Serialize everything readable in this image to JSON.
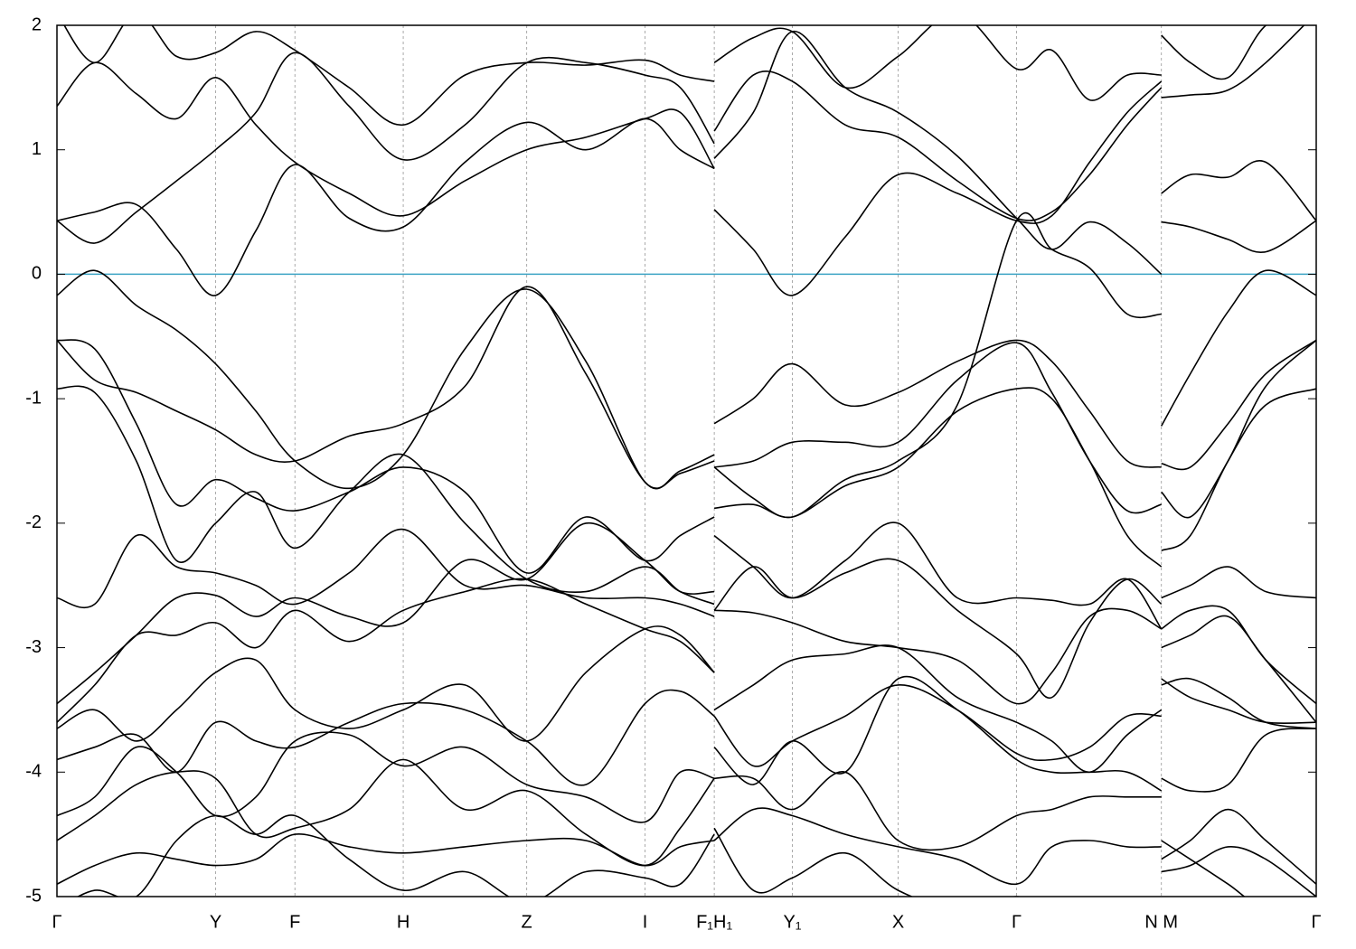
{
  "chart_data": {
    "type": "line",
    "x": [
      0,
      0.03,
      0.063,
      0.095,
      0.126,
      0.158,
      0.189,
      0.232,
      0.275,
      0.324,
      0.373,
      0.42,
      0.467,
      0.495,
      0.522,
      0.522,
      0.522,
      0.553,
      0.584,
      0.626,
      0.668,
      0.715,
      0.762,
      0.79,
      0.82,
      0.85,
      0.877,
      0.877,
      0.877,
      0.9,
      0.93,
      0.96,
      1.0
    ],
    "series": [
      {
        "color": "#000000",
        "values": [
          2.1,
          1.7,
          2.1,
          1.75,
          1.78,
          1.95,
          1.8,
          1.5,
          1.2,
          1.6,
          1.7,
          1.68,
          1.72,
          1.6,
          1.55,
          null,
          1.7,
          1.9,
          1.95,
          1.5,
          1.75,
          2.1,
          1.65,
          1.8,
          1.4,
          1.6,
          1.6,
          null,
          1.92,
          1.7,
          1.58,
          2.0,
          2.2
        ]
      },
      {
        "color": "#000000",
        "values": [
          1.35,
          1.7,
          1.45,
          1.25,
          1.58,
          1.2,
          0.9,
          0.65,
          0.47,
          0.75,
          1.0,
          1.1,
          1.25,
          1.3,
          0.85,
          null,
          1.15,
          1.6,
          1.55,
          1.2,
          1.1,
          0.75,
          0.45,
          0.5,
          0.8,
          1.2,
          1.5,
          null,
          1.42,
          1.44,
          1.48,
          1.7,
          2.1
        ]
      },
      {
        "color": "#000000",
        "values": [
          0.43,
          0.25,
          0.5,
          0.75,
          1.0,
          1.3,
          1.78,
          1.35,
          0.92,
          1.2,
          1.7,
          1.7,
          1.6,
          1.5,
          1.05,
          null,
          0.93,
          1.3,
          1.95,
          1.5,
          1.3,
          0.95,
          0.45,
          0.2,
          0.42,
          0.25,
          0.0,
          null,
          0.42,
          0.38,
          0.28,
          0.18,
          0.43
        ]
      },
      {
        "color": "#000000",
        "values": [
          0.43,
          0.5,
          0.56,
          0.2,
          -0.17,
          0.35,
          0.88,
          0.45,
          0.38,
          0.9,
          1.22,
          1.0,
          1.25,
          1.0,
          0.85,
          null,
          0.52,
          0.2,
          -0.17,
          0.3,
          0.8,
          0.65,
          0.43,
          0.47,
          0.9,
          1.3,
          1.55,
          null,
          0.65,
          0.8,
          0.78,
          0.9,
          0.43
        ]
      },
      {
        "color": "#000000",
        "values": [
          -0.17,
          0.03,
          -0.25,
          -0.45,
          -0.72,
          -1.1,
          -1.5,
          -1.72,
          -1.45,
          -0.6,
          -0.12,
          -0.7,
          -1.67,
          -1.58,
          -1.45,
          null,
          -1.55,
          -1.8,
          -1.95,
          -1.65,
          -1.5,
          -1.05,
          0.43,
          0.2,
          0.05,
          -0.32,
          -0.32,
          null,
          -1.22,
          -0.8,
          -0.3,
          0.03,
          -0.17
        ]
      },
      {
        "color": "#000000",
        "values": [
          -0.53,
          -0.85,
          -0.95,
          -1.1,
          -1.25,
          -1.45,
          -1.5,
          -1.3,
          -1.2,
          -0.9,
          -0.1,
          -0.8,
          -1.67,
          -1.6,
          -1.5,
          null,
          -1.2,
          -1.0,
          -0.72,
          -1.05,
          -0.95,
          -0.7,
          -0.53,
          -0.7,
          -1.1,
          -1.5,
          -1.55,
          null,
          -1.52,
          -1.55,
          -1.2,
          -0.8,
          -0.53
        ]
      },
      {
        "color": "#000000",
        "values": [
          -0.53,
          -0.6,
          -1.2,
          -1.85,
          -1.65,
          -1.8,
          -1.9,
          -1.75,
          -1.55,
          -1.75,
          -2.4,
          -1.95,
          -2.3,
          -2.1,
          -1.95,
          null,
          -1.55,
          -1.5,
          -1.35,
          -1.35,
          -1.35,
          -0.85,
          -0.55,
          -0.95,
          -1.5,
          -1.9,
          -1.85,
          null,
          -1.75,
          -1.95,
          -1.5,
          -0.9,
          -0.53
        ]
      },
      {
        "color": "#000000",
        "values": [
          -0.92,
          -0.95,
          -1.5,
          -2.3,
          -2.0,
          -1.75,
          -2.2,
          -1.75,
          -1.45,
          -2.0,
          -2.45,
          -2.55,
          -2.35,
          -2.55,
          -2.65,
          null,
          -1.88,
          -1.85,
          -1.95,
          -1.7,
          -1.55,
          -1.1,
          -0.92,
          -1.0,
          -1.5,
          -2.1,
          -2.35,
          null,
          -2.22,
          -2.1,
          -1.5,
          -1.05,
          -0.92
        ]
      },
      {
        "color": "#000000",
        "values": [
          -2.6,
          -2.65,
          -2.1,
          -2.35,
          -2.4,
          -2.5,
          -2.65,
          -2.4,
          -2.05,
          -2.5,
          -2.5,
          -2.6,
          -2.6,
          -2.65,
          -2.75,
          null,
          -2.1,
          -2.35,
          -2.6,
          -2.3,
          -2.0,
          -2.6,
          -2.6,
          -2.62,
          -2.65,
          -2.45,
          -2.85,
          null,
          -2.6,
          -2.5,
          -2.35,
          -2.55,
          -2.6
        ]
      },
      {
        "color": "#000000",
        "values": [
          -3.45,
          -3.2,
          -2.9,
          -2.6,
          -2.58,
          -2.75,
          -2.6,
          -2.75,
          -2.8,
          -2.3,
          -2.45,
          -2.0,
          -2.3,
          -2.55,
          -2.55,
          null,
          -2.7,
          -2.35,
          -2.6,
          -2.4,
          -2.3,
          -2.7,
          -3.05,
          -3.4,
          -2.8,
          -2.45,
          -2.65,
          null,
          -2.85,
          -2.7,
          -2.7,
          -3.1,
          -3.45
        ]
      },
      {
        "color": "#000000",
        "values": [
          -3.6,
          -3.3,
          -2.9,
          -2.9,
          -2.8,
          -3.0,
          -2.7,
          -2.95,
          -2.7,
          -2.55,
          -2.45,
          -2.65,
          -2.85,
          -2.95,
          -3.2,
          null,
          -2.7,
          -2.72,
          -2.8,
          -2.95,
          -3.0,
          -3.1,
          -3.45,
          -3.2,
          -2.75,
          -2.7,
          -2.85,
          null,
          -3.0,
          -2.9,
          -2.75,
          -3.1,
          -3.6
        ]
      },
      {
        "color": "#000000",
        "values": [
          -3.65,
          -3.5,
          -3.75,
          -3.5,
          -3.2,
          -3.1,
          -3.5,
          -3.65,
          -3.5,
          -3.3,
          -3.75,
          -3.2,
          -2.85,
          -2.9,
          -3.2,
          null,
          -3.5,
          -3.3,
          -3.1,
          -3.05,
          -3.0,
          -3.4,
          -3.6,
          -3.75,
          -4.0,
          -3.7,
          -3.5,
          null,
          -3.3,
          -3.25,
          -3.4,
          -3.6,
          -3.65
        ]
      },
      {
        "color": "#000000",
        "values": [
          -3.9,
          -3.8,
          -3.7,
          -4.0,
          -3.6,
          -3.75,
          -3.8,
          -3.6,
          -3.45,
          -3.5,
          -3.75,
          -4.1,
          -3.45,
          -3.35,
          -3.55,
          null,
          -3.55,
          -3.95,
          -3.75,
          -3.55,
          -3.3,
          -3.5,
          -3.85,
          -3.9,
          -3.8,
          -3.55,
          -3.55,
          null,
          -3.25,
          -3.4,
          -3.5,
          -3.6,
          -3.6
        ]
      },
      {
        "color": "#000000",
        "values": [
          -4.35,
          -4.2,
          -3.8,
          -4.0,
          -4.35,
          -4.2,
          -3.75,
          -3.7,
          -3.95,
          -3.8,
          -4.1,
          -4.2,
          -4.4,
          -4.0,
          -4.05,
          null,
          -3.8,
          -4.1,
          -3.75,
          -4.0,
          -3.25,
          -3.5,
          -3.9,
          -4.0,
          -4.0,
          -4.0,
          -4.15,
          null,
          -4.05,
          -4.15,
          -4.1,
          -3.7,
          -3.65
        ]
      },
      {
        "color": "#000000",
        "values": [
          -4.55,
          -4.35,
          -4.1,
          -4.0,
          -4.05,
          -4.5,
          -4.45,
          -4.3,
          -3.9,
          -4.3,
          -4.15,
          -4.5,
          -4.75,
          -4.45,
          -4.05,
          null,
          -4.05,
          -4.05,
          -4.3,
          -4.0,
          -4.55,
          -4.6,
          -4.35,
          -4.3,
          -4.2,
          -4.2,
          -4.2,
          null,
          -4.7,
          -4.55,
          -4.3,
          -4.55,
          -4.9
        ]
      },
      {
        "color": "#000000",
        "values": [
          -4.9,
          -4.75,
          -4.65,
          -4.7,
          -4.75,
          -4.7,
          -4.5,
          -4.6,
          -4.65,
          -4.6,
          -4.55,
          -4.55,
          -4.75,
          -4.6,
          -4.55,
          null,
          -4.55,
          -4.3,
          -4.35,
          -4.5,
          -4.6,
          -4.7,
          -4.9,
          -4.6,
          -4.55,
          -4.6,
          -4.6,
          null,
          -4.8,
          -4.75,
          -4.6,
          -4.7,
          -5.0
        ]
      },
      {
        "color": "#000000",
        "values": [
          -5.1,
          -4.95,
          -5.0,
          -4.55,
          -4.35,
          -4.5,
          -4.35,
          -4.7,
          -4.95,
          -4.8,
          -5.05,
          -4.8,
          -4.85,
          -4.9,
          -4.5,
          null,
          -4.45,
          -4.95,
          -4.85,
          -4.65,
          -4.95,
          -5.1,
          -5.0,
          -5.1,
          -5.1,
          -5.1,
          -5.1,
          null,
          -4.55,
          -4.7,
          -4.9,
          -5.1,
          -5.1
        ]
      }
    ],
    "xlim": [
      0,
      1
    ],
    "xticks": [
      {
        "value": 0,
        "label": "Γ"
      },
      {
        "value": 0.126,
        "label": "Y"
      },
      {
        "value": 0.189,
        "label": "F"
      },
      {
        "value": 0.275,
        "label": "H"
      },
      {
        "value": 0.373,
        "label": "Z"
      },
      {
        "value": 0.467,
        "label": "I"
      },
      {
        "value": 0.522,
        "label": "F₁H₁"
      },
      {
        "value": 0.584,
        "label": "Y₁"
      },
      {
        "value": 0.668,
        "label": "X"
      },
      {
        "value": 0.762,
        "label": "Γ"
      },
      {
        "value": 0.877,
        "label": "N M"
      },
      {
        "value": 1,
        "label": "Γ"
      }
    ],
    "ylim": [
      -5,
      2
    ],
    "yticks": [
      -5,
      -4,
      -3,
      -2,
      -1,
      0,
      1,
      2
    ],
    "grid": "x",
    "hline": 0,
    "hline_color": "#3ba3c4"
  }
}
